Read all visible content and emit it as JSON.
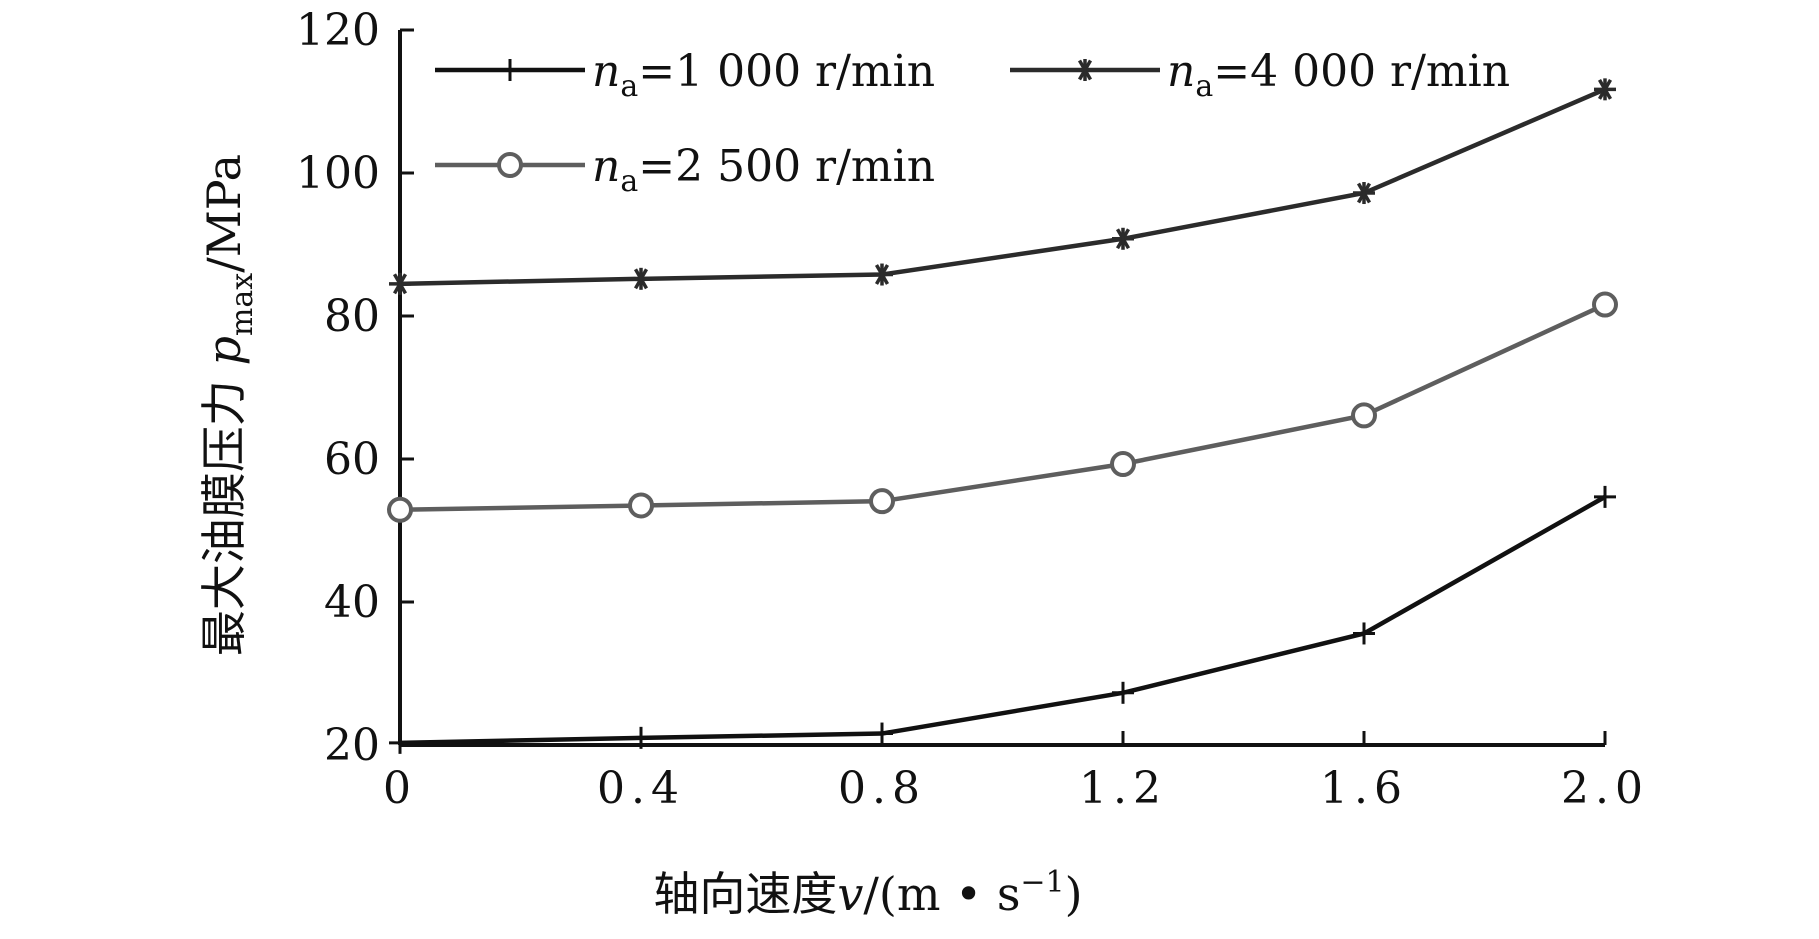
{
  "chart_data": {
    "type": "line",
    "x": [
      0,
      0.4,
      0.8,
      1.2,
      1.6,
      2.0
    ],
    "x_tick_labels": [
      "0",
      "0.4",
      "0.8",
      "1.2",
      "1.6",
      "2.0"
    ],
    "y_ticks": [
      20,
      40,
      60,
      80,
      100,
      120
    ],
    "y_tick_labels": [
      "20",
      "40",
      "60",
      "80",
      "100",
      "120"
    ],
    "xlim": [
      0,
      2.0
    ],
    "ylim": [
      20,
      120
    ],
    "xlabel": {
      "prefix": "轴向速度",
      "var": "v",
      "unit_open": "/(m • s",
      "unit_sup": "−1",
      "unit_close": ")"
    },
    "ylabel": {
      "prefix": "最大油膜压力 ",
      "var": "p",
      "sub": "max",
      "unit": "/MPa"
    },
    "grid": false,
    "legend_position": "top-left",
    "series": [
      {
        "label_var": "n",
        "label_sub": "a",
        "label_rest": "=1 000 r/min",
        "marker": "plus",
        "color": "#111111",
        "values": [
          20.3,
          21.0,
          21.6,
          27.3,
          35.6,
          54.7
        ]
      },
      {
        "label_var": "n",
        "label_sub": "a",
        "label_rest": "=4 000 r/min",
        "marker": "asterisk",
        "color": "#2b2b2b",
        "values": [
          84.5,
          85.2,
          85.8,
          90.8,
          97.2,
          111.7
        ]
      },
      {
        "label_var": "n",
        "label_sub": "a",
        "label_rest": "=2 500 r/min",
        "marker": "circle",
        "color": "#5e5e5e",
        "values": [
          52.9,
          53.5,
          54.1,
          59.3,
          66.1,
          81.6
        ]
      }
    ]
  }
}
